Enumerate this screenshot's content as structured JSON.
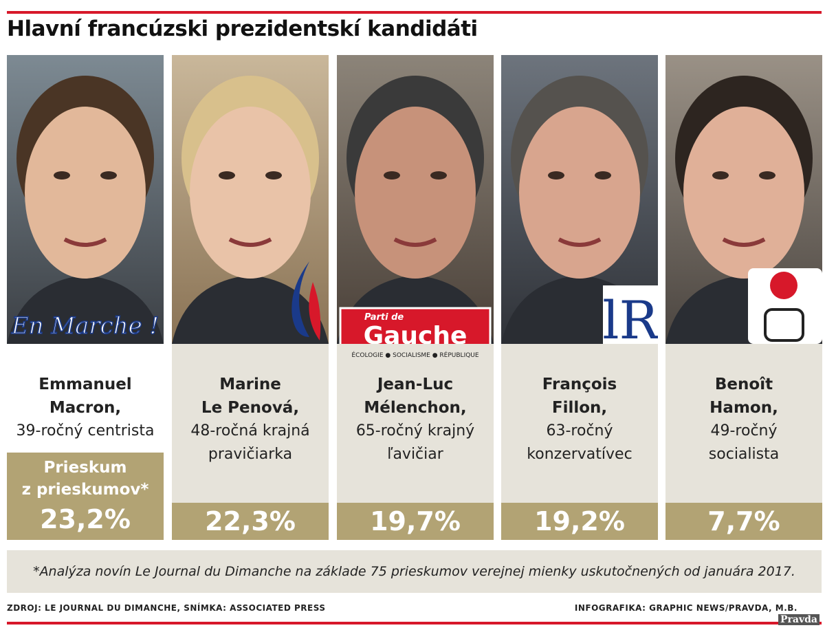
{
  "header": {
    "title": "Hlavní francúzski prezidentskí kandidáti"
  },
  "poll_label": [
    "Prieskum",
    "z prieskumov*"
  ],
  "candidates": [
    {
      "name": [
        "Emmanuel",
        "Macron,"
      ],
      "description": [
        "39-ročný centrista"
      ],
      "percent": "23,2%",
      "logo": [
        "En Marche !"
      ]
    },
    {
      "name": [
        "Marine",
        "Le Penová,"
      ],
      "description": [
        "48-ročná krajná",
        "pravičiarka"
      ],
      "percent": "22,3%",
      "logo": []
    },
    {
      "name": [
        "Jean-Luc",
        "Mélenchon,"
      ],
      "description": [
        "65-ročný krajný",
        "ľavičiar"
      ],
      "percent": "19,7%",
      "logo": [
        "Parti de",
        "Gauche",
        "ÉCOLOGIE ● SOCIALISME ● RÉPUBLIQUE"
      ]
    },
    {
      "name": [
        "François",
        "Fillon,"
      ],
      "description": [
        "63-ročný",
        "konzervatívec"
      ],
      "percent": "19,2%",
      "logo": [
        "lR"
      ]
    },
    {
      "name": [
        "Benoît",
        "Hamon,"
      ],
      "description": [
        "49-ročný",
        "socialista"
      ],
      "percent": "7,7%",
      "logo": []
    }
  ],
  "footnote": "*Analýza novín Le Journal du Dimanche na základe 75 prieskumov verejnej mienky uskutočnených od januára 2017.",
  "source": "ZDROJ: LE JOURNAL DU DIMANCHE, SNÍMKA: ASSOCIATED PRESS",
  "credit": "INFOGRAFIKA: GRAPHIC NEWS/PRAVDA, M.B.",
  "watermark": "Pravda"
}
